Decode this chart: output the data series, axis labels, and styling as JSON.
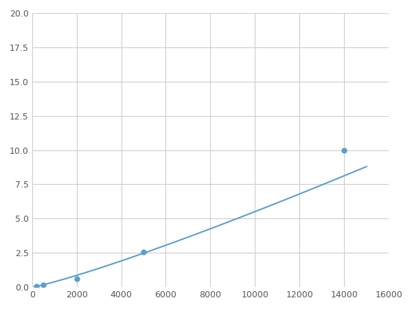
{
  "x": [
    200,
    500,
    2000,
    5000,
    14000
  ],
  "y": [
    0.08,
    0.15,
    0.6,
    2.55,
    10.0
  ],
  "line_color": "#5b9ec9",
  "marker_color": "#5b9ec9",
  "marker_size": 5,
  "xlim": [
    0,
    16000
  ],
  "ylim": [
    0,
    20.0
  ],
  "xticks": [
    0,
    2000,
    4000,
    6000,
    8000,
    10000,
    12000,
    14000,
    16000
  ],
  "yticks": [
    0.0,
    2.5,
    5.0,
    7.5,
    10.0,
    12.5,
    15.0,
    17.5,
    20.0
  ],
  "grid_color": "#cccccc",
  "background_color": "#ffffff",
  "line_width": 1.5
}
